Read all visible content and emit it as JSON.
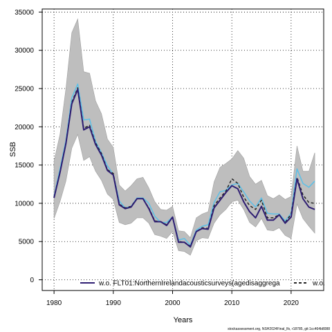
{
  "chart_data": {
    "type": "line",
    "xlabel": "Years",
    "ylabel": "SSB",
    "xlim": [
      1978,
      2025.5
    ],
    "ylim": [
      -1400,
      35400
    ],
    "xticks": [
      1980,
      1990,
      2000,
      2010,
      2020
    ],
    "yticks": [
      0,
      5000,
      10000,
      15000,
      20000,
      25000,
      30000,
      35000
    ],
    "grid": true,
    "grid_style": "dotted",
    "legend_position": "bottom",
    "x": [
      1980,
      1981,
      1982,
      1983,
      1984,
      1985,
      1986,
      1987,
      1988,
      1989,
      1990,
      1991,
      1992,
      1993,
      1994,
      1995,
      1996,
      1997,
      1998,
      1999,
      2000,
      2001,
      2002,
      2003,
      2004,
      2005,
      2006,
      2007,
      2008,
      2009,
      2010,
      2011,
      2012,
      2013,
      2014,
      2015,
      2016,
      2017,
      2018,
      2019,
      2020,
      2021,
      2022,
      2023,
      2024
    ],
    "confidence_band": {
      "color": "#bebebe",
      "upper": [
        15500,
        19000,
        25000,
        32300,
        34100,
        27200,
        27000,
        23400,
        21700,
        18400,
        17300,
        12400,
        11600,
        12300,
        13200,
        13400,
        12000,
        10200,
        9200,
        9100,
        9600,
        6400,
        6300,
        5500,
        8100,
        8600,
        8900,
        12800,
        14700,
        15200,
        15800,
        16900,
        15900,
        13500,
        12500,
        13000,
        11000,
        10600,
        11100,
        10500,
        10900,
        17500,
        14200,
        14200,
        16600
      ],
      "lower": [
        8000,
        10200,
        12900,
        17200,
        19000,
        15600,
        16100,
        14200,
        13000,
        11200,
        10500,
        7500,
        7200,
        7400,
        8100,
        8100,
        7400,
        5900,
        5700,
        5400,
        6300,
        3800,
        3700,
        3200,
        5100,
        5500,
        5400,
        7400,
        8500,
        9200,
        10200,
        10400,
        9200,
        7500,
        6900,
        8000,
        6500,
        6400,
        6800,
        5800,
        5400,
        9900,
        8000,
        7000,
        6100
      ]
    },
    "series": [
      {
        "name": "w.o. FLT01:NorthernIrelandacousticsurveys(agedisaggrega",
        "color": "#2e1d72",
        "style": "solid",
        "width": 2,
        "values": [
          10700,
          14000,
          17800,
          23000,
          24900,
          19600,
          20000,
          17700,
          16300,
          14300,
          13700,
          9800,
          9300,
          9500,
          10600,
          10600,
          9300,
          7600,
          7600,
          7100,
          8200,
          4900,
          4900,
          4300,
          6300,
          6700,
          6600,
          9400,
          10400,
          11400,
          12300,
          11900,
          10200,
          8900,
          8100,
          9600,
          7800,
          7800,
          8500,
          7400,
          8200,
          13200,
          10600,
          9500,
          9200
        ]
      },
      {
        "name": "w.o. ",
        "color": "#222222",
        "style": "dashed",
        "width": 1.5,
        "values": [
          10800,
          14100,
          17900,
          23200,
          25100,
          19800,
          20200,
          17900,
          16500,
          14400,
          13900,
          9900,
          9400,
          9600,
          10600,
          10600,
          9400,
          7700,
          7600,
          7200,
          8200,
          5000,
          4900,
          4400,
          6300,
          6800,
          6700,
          9700,
          10700,
          11600,
          13200,
          12600,
          10800,
          9700,
          9200,
          10400,
          8100,
          8100,
          8500,
          7500,
          8600,
          13400,
          11100,
          10100,
          10000
        ]
      },
      {
        "name": "",
        "color": "#5bc0e8",
        "style": "solid",
        "width": 1.5,
        "values": [
          10900,
          14500,
          18200,
          23800,
          25600,
          20900,
          21000,
          18100,
          16600,
          14900,
          13800,
          10300,
          9400,
          9600,
          10700,
          10700,
          10000,
          8300,
          7500,
          7500,
          8200,
          5200,
          5400,
          4500,
          6500,
          7000,
          7200,
          10100,
          11500,
          11700,
          12400,
          12600,
          11500,
          10300,
          9500,
          10700,
          8700,
          8600,
          8600,
          7700,
          8700,
          14500,
          12600,
          12100,
          12900
        ]
      }
    ],
    "legend": [
      {
        "label": "w.o. FLT01:NorthernIrelandacousticsurveys(agedisaggrega",
        "color": "#2e1d72",
        "style": "solid"
      },
      {
        "label": "w.o. ",
        "color": "#222222",
        "style": "dashed"
      }
    ],
    "footnote": "stockassessment.org, NSH2024Final_lfs, r18785, git:1cc464b8088"
  }
}
